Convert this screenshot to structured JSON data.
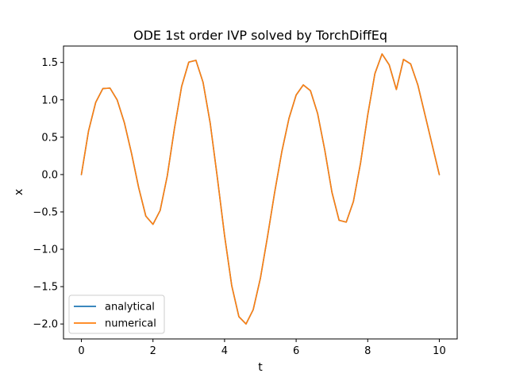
{
  "chart_data": {
    "type": "line",
    "title": "ODE 1st order IVP solved by TorchDiffEq",
    "xlabel": "t",
    "ylabel": "x",
    "xlim": [
      -0.5,
      10.5
    ],
    "ylim": [
      -2.2,
      1.72
    ],
    "xticks": [
      0,
      2,
      4,
      6,
      8,
      10
    ],
    "yticks": [
      -2.0,
      -1.5,
      -1.0,
      -0.5,
      0.0,
      0.5,
      1.0,
      1.5
    ],
    "x_tick_labels": [
      "0",
      "2",
      "4",
      "6",
      "8",
      "10"
    ],
    "y_tick_labels": [
      "−2.0",
      "−1.5",
      "−1.0",
      "−0.5",
      "0.0",
      "0.5",
      "1.0",
      "1.5"
    ],
    "grid": false,
    "legend_position": "lower-left",
    "series": [
      {
        "name": "analytical",
        "color": "#1f77b4",
        "x": [
          0,
          0.2,
          0.4,
          0.6,
          0.8,
          1.0,
          1.2,
          1.4,
          1.6,
          1.8,
          2.0,
          2.2,
          2.4,
          2.6,
          2.8,
          3.0,
          3.2,
          3.4,
          3.6,
          3.8,
          4.0,
          4.2,
          4.4,
          4.6,
          4.8,
          5.0,
          5.2,
          5.4,
          5.6,
          5.8,
          6.0,
          6.2,
          6.4,
          6.6,
          6.8,
          7.0,
          7.2,
          7.4,
          7.6,
          7.8,
          8.0,
          8.2,
          8.4,
          8.6,
          8.8,
          9.0,
          9.2,
          9.4,
          9.6,
          9.8,
          10.0
        ],
        "values": [
          0.0,
          0.584,
          0.966,
          1.151,
          1.157,
          0.998,
          0.695,
          0.285,
          -0.174,
          -0.556,
          -0.666,
          -0.481,
          -0.017,
          0.618,
          1.178,
          1.505,
          1.529,
          1.233,
          0.685,
          -0.046,
          -0.816,
          -1.486,
          -1.902,
          -2.0,
          -1.809,
          -1.391,
          -0.831,
          -0.237,
          0.306,
          0.752,
          1.064,
          1.2,
          1.123,
          0.817,
          0.328,
          -0.236,
          -0.612,
          -0.637,
          -0.361,
          0.156,
          0.797,
          1.35,
          1.614,
          1.469,
          1.138,
          1.541,
          1.48,
          1.2,
          0.8,
          0.4,
          0.0
        ]
      },
      {
        "name": "numerical",
        "color": "#ff7f0e",
        "x": [
          0,
          0.2,
          0.4,
          0.6,
          0.8,
          1.0,
          1.2,
          1.4,
          1.6,
          1.8,
          2.0,
          2.2,
          2.4,
          2.6,
          2.8,
          3.0,
          3.2,
          3.4,
          3.6,
          3.8,
          4.0,
          4.2,
          4.4,
          4.6,
          4.8,
          5.0,
          5.2,
          5.4,
          5.6,
          5.8,
          6.0,
          6.2,
          6.4,
          6.6,
          6.8,
          7.0,
          7.2,
          7.4,
          7.6,
          7.8,
          8.0,
          8.2,
          8.4,
          8.6,
          8.8,
          9.0,
          9.2,
          9.4,
          9.6,
          9.8,
          10.0
        ],
        "values": [
          0.0,
          0.584,
          0.966,
          1.151,
          1.157,
          0.998,
          0.695,
          0.285,
          -0.174,
          -0.556,
          -0.666,
          -0.481,
          -0.017,
          0.618,
          1.178,
          1.505,
          1.529,
          1.233,
          0.685,
          -0.046,
          -0.816,
          -1.486,
          -1.902,
          -2.0,
          -1.809,
          -1.391,
          -0.831,
          -0.237,
          0.306,
          0.752,
          1.064,
          1.2,
          1.123,
          0.817,
          0.328,
          -0.236,
          -0.612,
          -0.637,
          -0.361,
          0.156,
          0.797,
          1.35,
          1.614,
          1.469,
          1.138,
          1.541,
          1.48,
          1.2,
          0.8,
          0.4,
          0.0
        ]
      }
    ]
  }
}
